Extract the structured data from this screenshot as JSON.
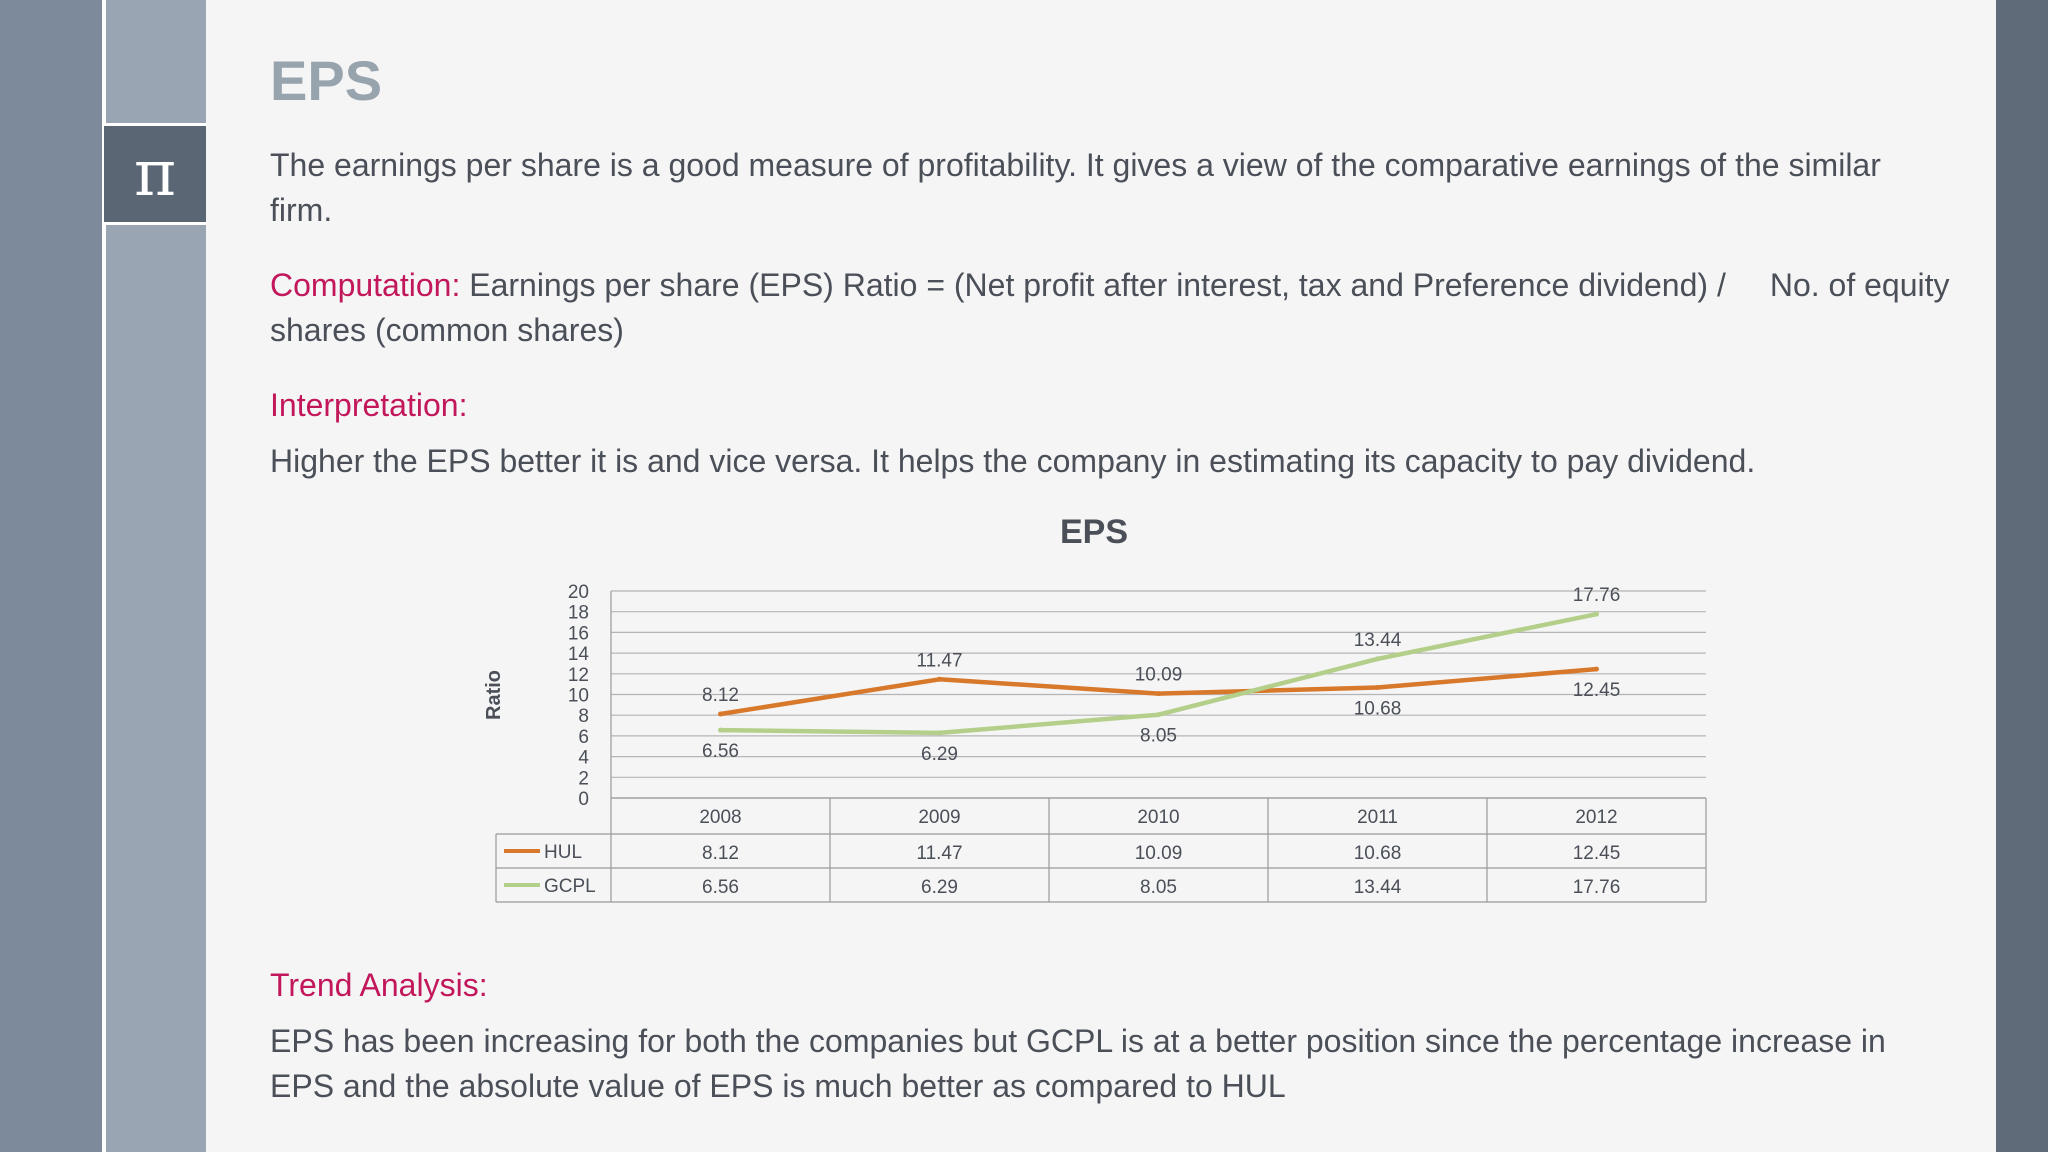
{
  "sidebar": {
    "icon_glyph": "π",
    "icon_name": "pi-icon"
  },
  "colors": {
    "accent_pink": "#c2185b",
    "hul": "#d7782b",
    "gcpl": "#b3cf8a",
    "title": "#97a3ad"
  },
  "slide": {
    "title": "EPS",
    "intro": "The earnings per share is a good measure of profitability. It gives a view of the comparative earnings of the similar firm.",
    "computation_label": "Computation:",
    "computation_formula_a": "Earnings per share (EPS) Ratio = (Net profit after interest, tax and Preference dividend) /",
    "computation_formula_b": "No. of equity shares (common shares)",
    "interpretation_label": "Interpretation:",
    "interpretation_text": "Higher the EPS better it is and vice versa. It helps the company in estimating its capacity to pay dividend.",
    "trend_label": "Trend Analysis:",
    "trend_text": "EPS has been increasing for both the companies but GCPL is at a better position since the percentage increase in EPS and the absolute value of EPS is much better as compared to HUL"
  },
  "chart_data": {
    "type": "line",
    "title": "EPS",
    "xlabel": "",
    "ylabel": "Ratio",
    "categories": [
      "2008",
      "2009",
      "2010",
      "2011",
      "2012"
    ],
    "ylim": [
      0,
      20
    ],
    "yticks": [
      0,
      2,
      4,
      6,
      8,
      10,
      12,
      14,
      16,
      18,
      20
    ],
    "grid": true,
    "legend": "data-table",
    "series": [
      {
        "name": "HUL",
        "values": [
          8.12,
          11.47,
          10.09,
          10.68,
          12.45
        ],
        "color": "#d7782b"
      },
      {
        "name": "GCPL",
        "values": [
          6.56,
          6.29,
          8.05,
          13.44,
          17.76
        ],
        "color": "#b3cf8a"
      }
    ]
  }
}
